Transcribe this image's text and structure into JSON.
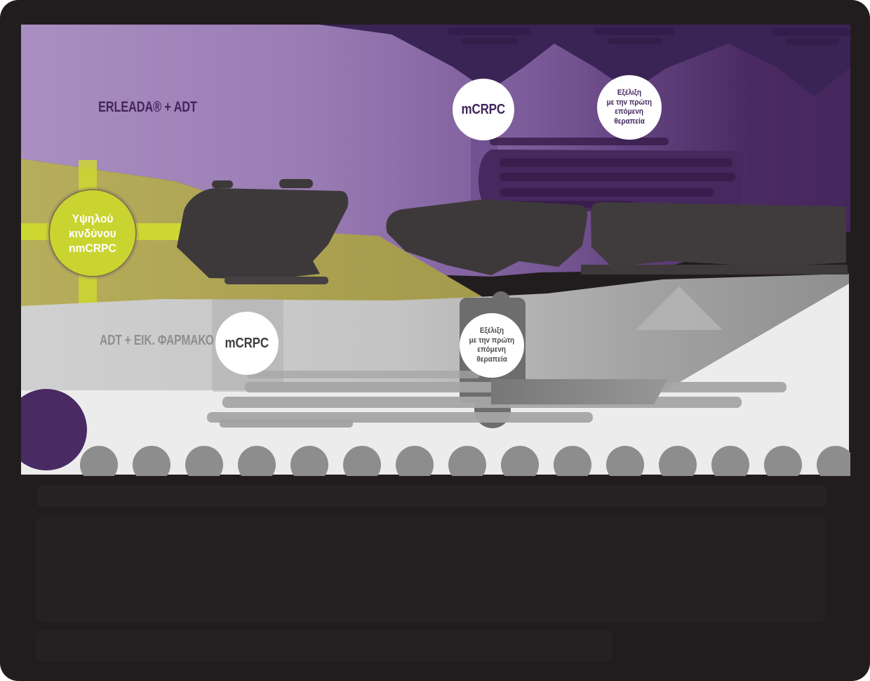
{
  "arms": {
    "erleada": {
      "label": "ERLEADA® + ADT"
    },
    "control": {
      "label": "ADT + ΕΙΚ. ΦΑΡΜΑΚΟ"
    }
  },
  "start": {
    "line1": "Υψηλού",
    "line2": "κινδύνου",
    "line3": "nmCRPC"
  },
  "erleada_nodes": {
    "mcrpc": "mCRPC",
    "progression": {
      "line1": "Εξέλιξη",
      "line2": "με την πρώτη",
      "line3": "επόμενη",
      "line4": "θεραπεία"
    }
  },
  "control_nodes": {
    "mcrpc": "mCRPC",
    "progression": {
      "line1": "Εξέλιξη",
      "line2": "με την πρώτη",
      "line3": "επόμενη",
      "line4": "θεραπεία"
    }
  },
  "timeline": {
    "dot_count": 15
  },
  "colors": {
    "background": "#211d1e",
    "purple_light": "#a98fc1",
    "purple_dark": "#49285f",
    "purple_arrow": "#3a2355",
    "purple_deep": "#42265c",
    "yellow": "#c9d431",
    "olive": "#ab9f50",
    "gray_band": "#c6c6c6",
    "gray_stripe": "#6d6d6d",
    "gray_light": "#ececec",
    "dot_gray": "#8d8d8d",
    "charcoal": "#3d393a",
    "control_text": "#8f8f8f",
    "control_node_text": "#4a4a4a"
  }
}
